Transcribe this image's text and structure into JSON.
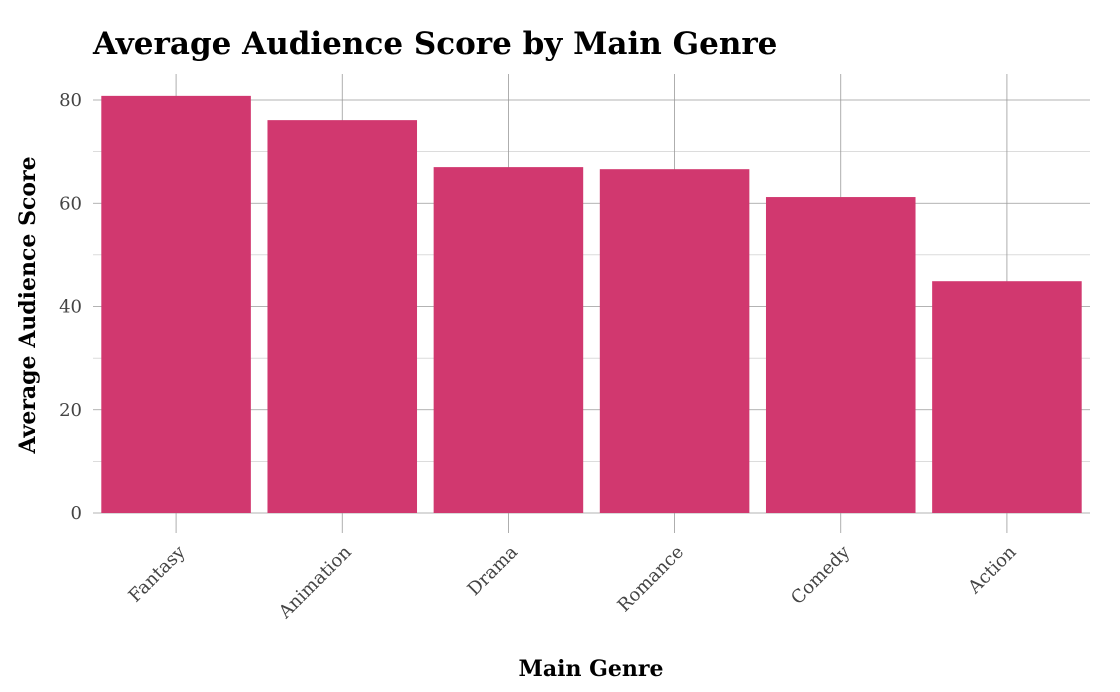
{
  "colors": {
    "bar": "#d1386f",
    "background": "#ffffff"
  },
  "chart_data": {
    "type": "bar",
    "title": "Average Audience Score by Main Genre",
    "xlabel": "Main Genre",
    "ylabel": "Average Audience Score",
    "categories": [
      "Fantasy",
      "Animation",
      "Drama",
      "Romance",
      "Comedy",
      "Action"
    ],
    "values": [
      80.8,
      76.1,
      67.0,
      66.6,
      61.2,
      44.9
    ],
    "ylim": [
      0,
      85
    ],
    "yticks": [
      0,
      20,
      40,
      60,
      80
    ],
    "grid": true,
    "legend": "none"
  }
}
